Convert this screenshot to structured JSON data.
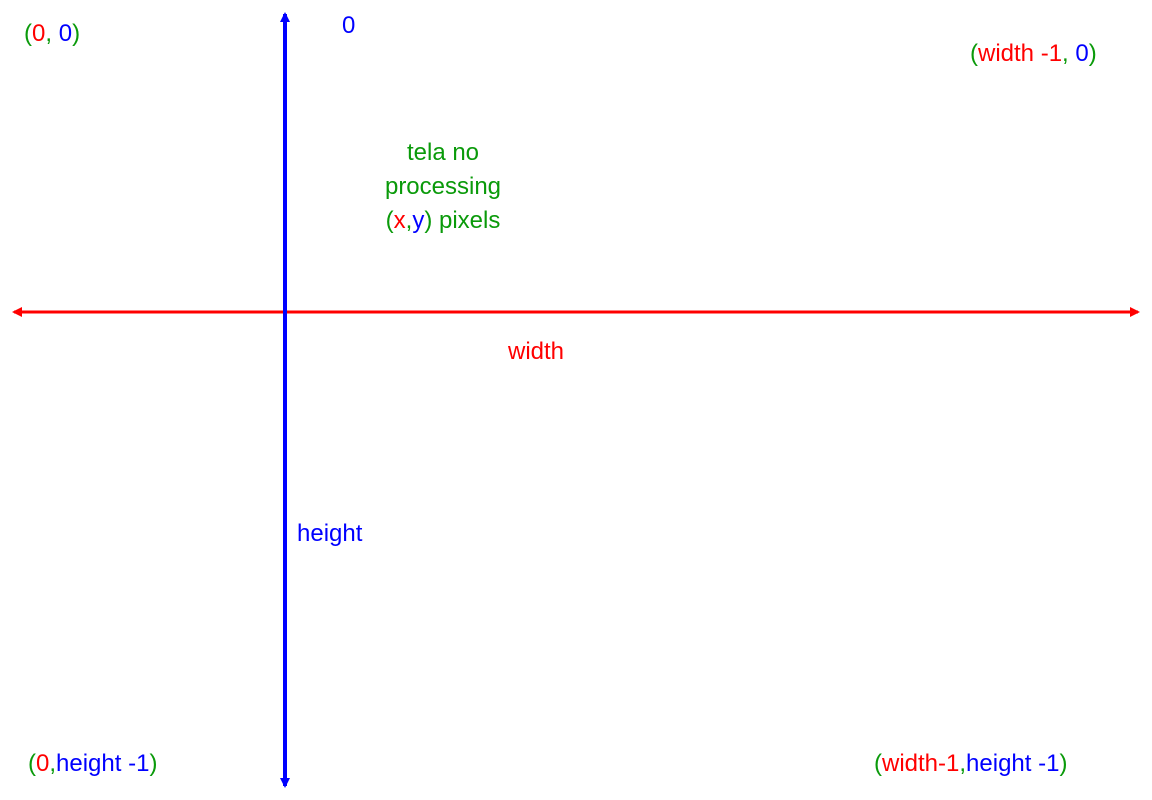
{
  "labels": {
    "top_left": {
      "open": "(",
      "x": "0",
      "sep": ", ",
      "y": "0",
      "close": ")"
    },
    "top_right": {
      "open": "(",
      "x": "width -1",
      "sep": ", ",
      "y": "0",
      "close": ")"
    },
    "bottom_left": {
      "open": "(",
      "x": "0",
      "sep": ",",
      "y": "height -1",
      "close": ")"
    },
    "bottom_right": {
      "open": "(",
      "x": "width-1",
      "sep": ",",
      "y": "height -1",
      "close": ")"
    },
    "y_axis_top": "0",
    "x_axis": "width",
    "y_axis": "height"
  },
  "caption": {
    "line1": "tela no",
    "line2": "processing",
    "open": "(",
    "x": "x",
    "sep": ",",
    "y": "y",
    "close_text": ") pixels"
  },
  "colors": {
    "coordinate_parens": "#0a9a0a",
    "x_axis": "#ff0000",
    "y_axis": "#0000ff"
  }
}
